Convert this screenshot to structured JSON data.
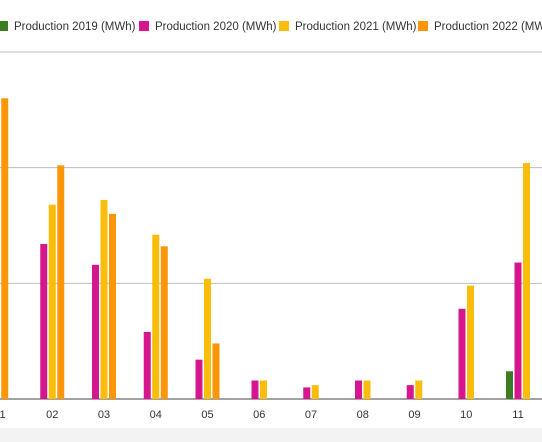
{
  "chart_data": {
    "type": "bar",
    "categories": [
      "1",
      "02",
      "03",
      "04",
      "05",
      "06",
      "07",
      "08",
      "09",
      "10",
      "11"
    ],
    "series": [
      {
        "name": "Production 2019 (MWh)",
        "color": "#3a7d22",
        "values": [
          0,
          0,
          0,
          0,
          0,
          0,
          0,
          0,
          0,
          0,
          12
        ]
      },
      {
        "name": "Production 2020 (MWh)",
        "color": "#d6168e",
        "values": [
          0,
          67,
          58,
          29,
          17,
          8,
          5,
          8,
          6,
          39,
          59
        ]
      },
      {
        "name": "Production 2021 (MWh)",
        "color": "#fbbd0c",
        "values": [
          95,
          84,
          86,
          71,
          52,
          8,
          6,
          8,
          8,
          49,
          102
        ]
      },
      {
        "name": "Production 2022 (MWh)",
        "color": "#fb9606",
        "values": [
          130,
          101,
          80,
          66,
          24,
          0,
          0,
          0,
          0,
          0,
          0
        ]
      }
    ],
    "ylim": [
      0,
      150
    ],
    "gridlines": [
      0,
      50,
      100,
      150
    ],
    "grid": true,
    "legend": "top",
    "title": "",
    "xlabel": "",
    "ylabel": ""
  }
}
